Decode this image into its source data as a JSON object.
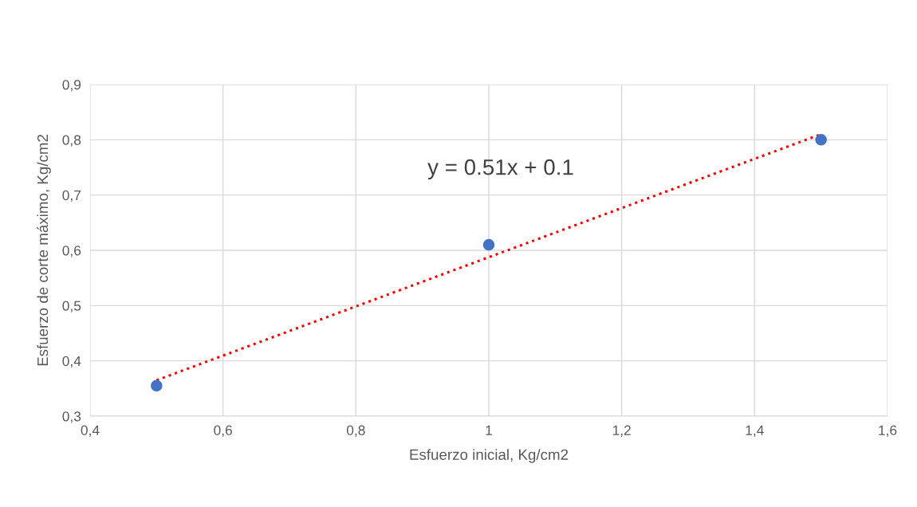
{
  "chart_data": {
    "type": "scatter",
    "xlabel": "Esfuerzo inicial, Kg/cm2",
    "ylabel": "Esfuerzo de corte máximo, Kg/cm2",
    "x": [
      0.5,
      1,
      1.5
    ],
    "series": [
      {
        "color": "#4472c4",
        "values": [
          0.355,
          0.61,
          0.8
        ],
        "marker": "circle"
      },
      {
        "type": "line",
        "color": "#ff0000",
        "x": [
          0.5,
          1.5
        ],
        "values": [
          0.365,
          0.81
        ],
        "line_style": "dotted",
        "marker": "none"
      }
    ],
    "annotations": [
      "y = 0.51x + 0.1"
    ],
    "xlim": [
      0.4,
      1.6
    ],
    "xticks": [
      {
        "value": 0.4,
        "label": "0,4"
      },
      {
        "value": 0.6,
        "label": "0,6"
      },
      {
        "value": 0.8,
        "label": "0,8"
      },
      1,
      {
        "value": 1.2,
        "label": "1,2"
      },
      {
        "value": 1.4,
        "label": "1,4"
      },
      {
        "value": 1.6,
        "label": "1,6"
      }
    ],
    "ylim": [
      0.3,
      0.9
    ],
    "yticks": [
      {
        "value": 0.3,
        "label": "0,3"
      },
      {
        "value": 0.4,
        "label": "0,4"
      },
      {
        "value": 0.5,
        "label": "0,5"
      },
      {
        "value": 0.6,
        "label": "0,6"
      },
      {
        "value": 0.7,
        "label": "0,7"
      },
      {
        "value": 0.8,
        "label": "0,8"
      },
      {
        "value": 0.9,
        "label": "0,9"
      }
    ],
    "grid": true
  }
}
